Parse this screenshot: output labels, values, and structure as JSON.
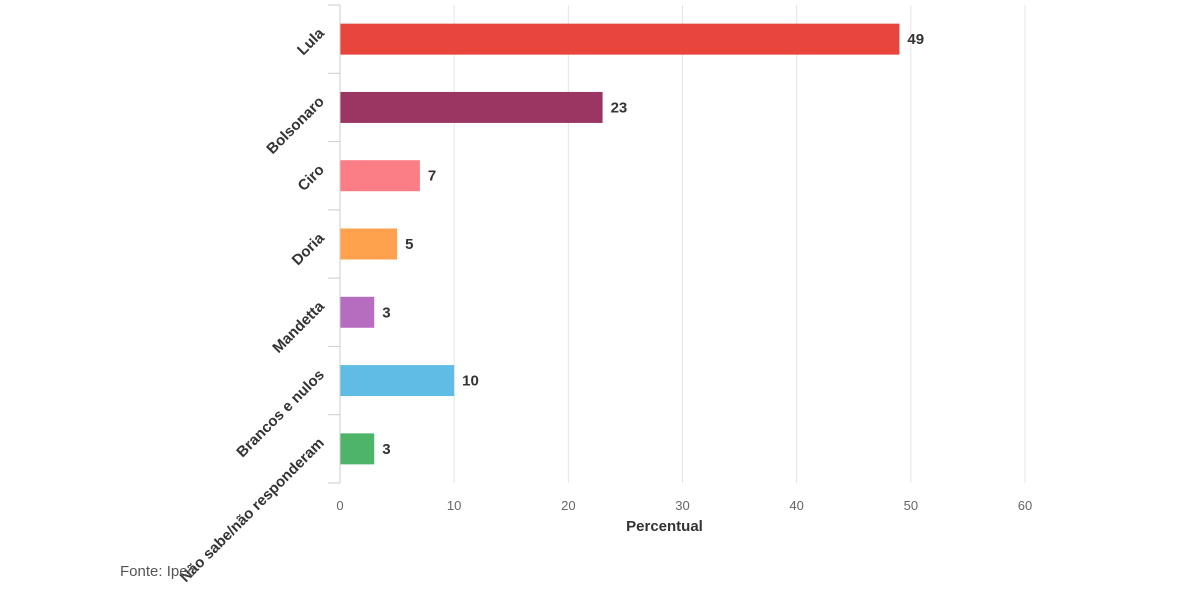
{
  "chart_data": {
    "type": "bar",
    "orientation": "horizontal",
    "categories": [
      "Lula",
      "Bolsonaro",
      "Ciro",
      "Doria",
      "Mandetta",
      "Brancos e nulos",
      "Não sabe/não responderam"
    ],
    "values": [
      49,
      23,
      7,
      5,
      3,
      10,
      3
    ],
    "colors": [
      "#e8453c",
      "#9b3561",
      "#fb7d85",
      "#ffa24d",
      "#b66dbf",
      "#60bce4",
      "#4db46a"
    ],
    "xlabel": "Percentual",
    "ylabel": "",
    "xlim": [
      0,
      60
    ],
    "xticks": [
      0,
      10,
      20,
      30,
      40,
      50,
      60
    ],
    "grid": true,
    "data_labels": [
      "49",
      "23",
      "7",
      "5",
      "3",
      "10",
      "3"
    ]
  },
  "source": "Fonte: Ipec"
}
